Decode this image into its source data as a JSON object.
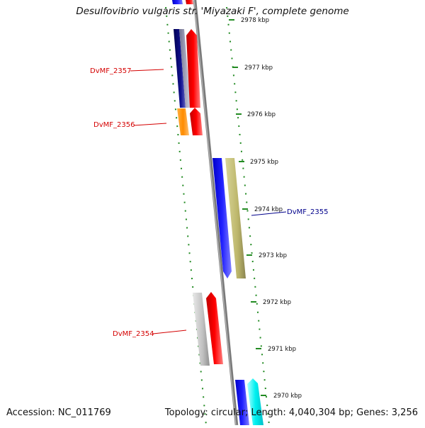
{
  "title": "Desulfovibrio vulgaris str. 'Miyazaki F', complete genome",
  "footer": {
    "accession": "Accession: NC_011769",
    "summary": "Topology: circular; Length: 4,040,304 bp; Genes: 3,256"
  },
  "ticks": [
    {
      "label": "2978 kbp"
    },
    {
      "label": "2977 kbp"
    },
    {
      "label": "2976 kbp"
    },
    {
      "label": "2975 kbp"
    },
    {
      "label": "2974 kbp"
    },
    {
      "label": "2973 kbp"
    },
    {
      "label": "2972 kbp"
    },
    {
      "label": "2971 kbp"
    },
    {
      "label": "2970 kbp"
    }
  ],
  "gene_labels": [
    {
      "name": "DvMF_2357",
      "color": "#d40000"
    },
    {
      "name": "DvMF_2356",
      "color": "#d40000"
    },
    {
      "name": "DvMF_2355",
      "color": "#00008b"
    },
    {
      "name": "DvMF_2354",
      "color": "#d40000"
    }
  ],
  "colors": {
    "backbone": "#8c8c8c",
    "dots": "#228b22",
    "red_feature": "#ff0000",
    "blue_feature": "#0000ff",
    "navy_feature": "#000080",
    "khaki_feature": "#bdb76b",
    "orange_feature": "#ff8c00",
    "gray_feature": "#c0c0c0",
    "cyan_feature": "#00e5ee"
  }
}
